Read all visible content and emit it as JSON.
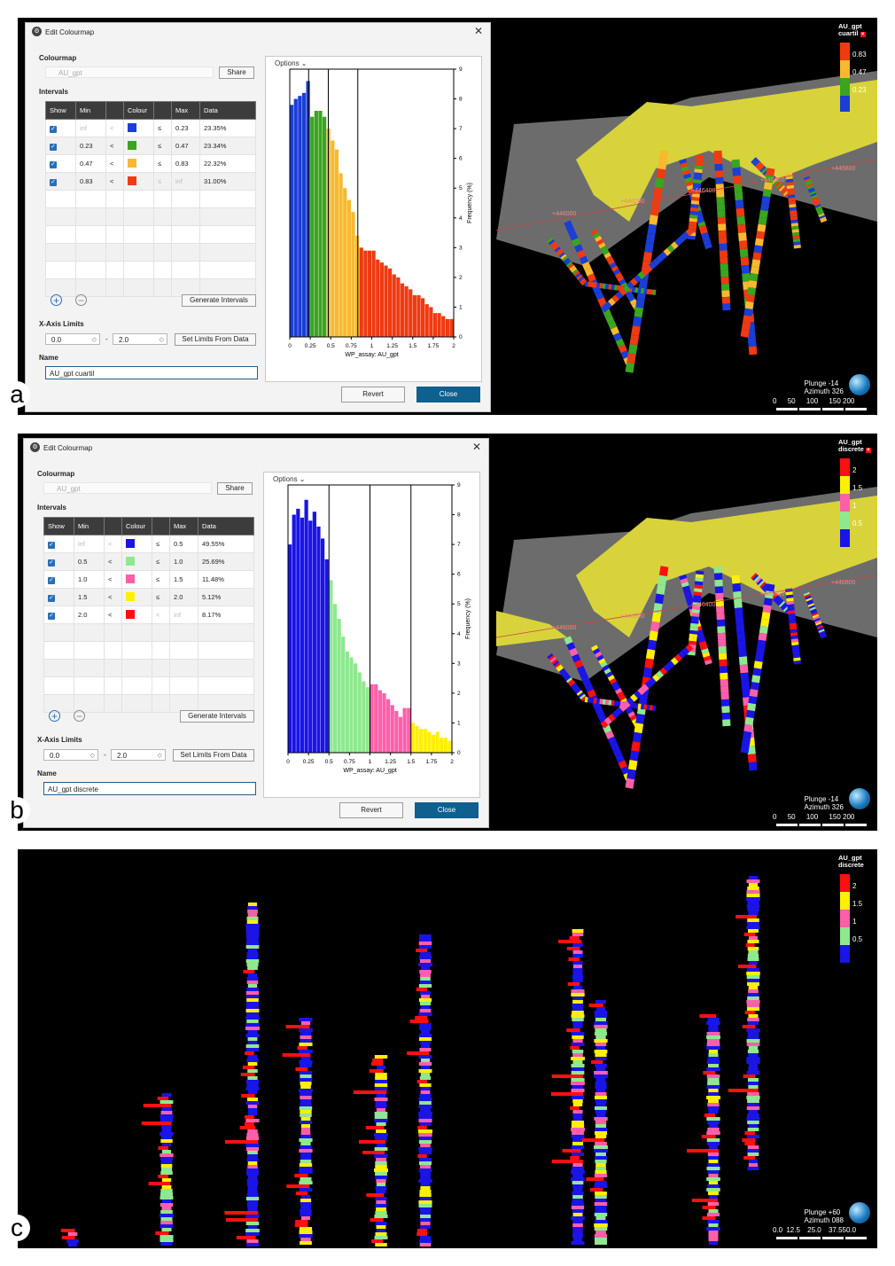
{
  "panels": [
    {
      "letter": "a",
      "dialog": {
        "title": "Edit Colourmap",
        "colourmap_label": "Colourmap",
        "colourmap_value": "AU_gpt",
        "share_label": "Share",
        "intervals_label": "Intervals",
        "headers": [
          "Show",
          "Min",
          "",
          "Colour",
          "",
          "Max",
          "Data"
        ],
        "rows": [
          {
            "min": "inf",
            "op1": "<",
            "color": "#1a3ed6",
            "op2": "≤",
            "max": "0.23",
            "data": "23.35%"
          },
          {
            "min": "0.23",
            "op1": "<",
            "color": "#3aa520",
            "op2": "≤",
            "max": "0.47",
            "data": "23.34%"
          },
          {
            "min": "0.47",
            "op1": "<",
            "color": "#f8b92e",
            "op2": "≤",
            "max": "0.83",
            "data": "22.32%"
          },
          {
            "min": "0.83",
            "op1": "<",
            "color": "#ef3a12",
            "op2": "≤",
            "max": "inf",
            "data": "31.00%"
          }
        ],
        "generate_label": "Generate Intervals",
        "xaxis_label": "X-Axis Limits",
        "xmin": "0.0",
        "dash": "-",
        "xmax": "2.0",
        "set_limits_label": "Set Limits From Data",
        "name_label": "Name",
        "name_value": "AU_gpt cuartil",
        "revert_label": "Revert",
        "close_label": "Close",
        "options_label": "Options"
      },
      "legend": {
        "title": "AU_gpt cuartil",
        "ticks": [
          "0.83",
          "0.47",
          "0.23"
        ],
        "colors": [
          "#ef3a12",
          "#f8b92e",
          "#3aa520",
          "#1a3ed6"
        ]
      },
      "orientation": {
        "plunge": "Plunge -14",
        "azimuth": "Azimuth 326"
      },
      "scale_ticks": [
        "0",
        "50",
        "100",
        "150",
        "200"
      ],
      "coords": [
        "+446000",
        "+446200",
        "+446400",
        "+446600",
        "+446800"
      ]
    },
    {
      "letter": "b",
      "dialog": {
        "title": "Edit Colourmap",
        "colourmap_label": "Colourmap",
        "colourmap_value": "AU_gpt",
        "share_label": "Share",
        "intervals_label": "Intervals",
        "headers": [
          "Show",
          "Min",
          "",
          "Colour",
          "",
          "Max",
          "Data"
        ],
        "rows": [
          {
            "min": "inf",
            "op1": "<",
            "color": "#1a14e6",
            "op2": "≤",
            "max": "0.5",
            "data": "49.55%"
          },
          {
            "min": "0.5",
            "op1": "<",
            "color": "#8fe88f",
            "op2": "≤",
            "max": "1.0",
            "data": "25.69%"
          },
          {
            "min": "1.0",
            "op1": "<",
            "color": "#ff5faa",
            "op2": "≤",
            "max": "1.5",
            "data": "11.48%"
          },
          {
            "min": "1.5",
            "op1": "<",
            "color": "#ffef00",
            "op2": "≤",
            "max": "2.0",
            "data": "5.12%"
          },
          {
            "min": "2.0",
            "op1": "<",
            "color": "#ff1010",
            "op2": "<",
            "max": "inf",
            "data": "8.17%"
          }
        ],
        "generate_label": "Generate Intervals",
        "xaxis_label": "X-Axis Limits",
        "xmin": "0.0",
        "dash": "-",
        "xmax": "2.0",
        "set_limits_label": "Set Limits From Data",
        "name_label": "Name",
        "name_value": "AU_gpt discrete",
        "revert_label": "Revert",
        "close_label": "Close",
        "options_label": "Options"
      },
      "legend": {
        "title": "AU_gpt discrete",
        "ticks": [
          "2",
          "1.5",
          "1",
          "0.5"
        ],
        "colors": [
          "#ff1010",
          "#ffef00",
          "#ff5faa",
          "#8fe88f",
          "#1a14e6"
        ]
      },
      "orientation": {
        "plunge": "Plunge -14",
        "azimuth": "Azimuth 326"
      },
      "scale_ticks": [
        "0",
        "50",
        "100",
        "150",
        "200"
      ],
      "coords": [
        "+446000",
        "+446200",
        "+446400",
        "+446600",
        "+446800"
      ]
    },
    {
      "letter": "c",
      "legend": {
        "title": "AU_gpt discrete",
        "ticks": [
          "2",
          "1.5",
          "1",
          "0.5"
        ],
        "colors": [
          "#ff1010",
          "#ffef00",
          "#ff5faa",
          "#8fe88f",
          "#1a14e6"
        ]
      },
      "orientation": {
        "plunge": "Plunge +60",
        "azimuth": "Azimuth 088"
      },
      "scale_ticks": [
        "0.0",
        "12.5",
        "25.0",
        "37.550.0"
      ]
    }
  ],
  "chart_data": [
    {
      "type": "bar",
      "xlabel": "WP_assay: AU_gpt",
      "ylabel": "Frequency (%)",
      "xlim": [
        0,
        2
      ],
      "ylim": [
        0,
        9
      ],
      "xticks": [
        "0",
        "0.25",
        "0.5",
        "0.75",
        "1",
        "1.25",
        "1.5",
        "1.75",
        "2"
      ],
      "yticks": [
        "0",
        "1",
        "2",
        "3",
        "4",
        "5",
        "6",
        "7",
        "8",
        "9"
      ],
      "bin_width": 0.05,
      "values": [
        7.8,
        8.0,
        8.1,
        8.2,
        8.6,
        7.4,
        7.6,
        7.6,
        7.4,
        7.0,
        6.6,
        6.3,
        5.5,
        5.0,
        4.6,
        4.2,
        3.4,
        3.0,
        2.9,
        2.9,
        2.9,
        2.6,
        2.5,
        2.4,
        2.3,
        2.1,
        2.0,
        1.8,
        1.7,
        1.6,
        1.4,
        1.4,
        1.3,
        1.1,
        1.0,
        0.8,
        0.8,
        0.7,
        0.6,
        0.6
      ],
      "thresholds": [
        0.23,
        0.47,
        0.83
      ],
      "colors": [
        "#1a3ed6",
        "#3aa520",
        "#f8b92e",
        "#ef3a12"
      ]
    },
    {
      "type": "bar",
      "xlabel": "WP_assay: AU_gpt",
      "ylabel": "Frequency (%)",
      "xlim": [
        0,
        2
      ],
      "ylim": [
        0,
        9
      ],
      "xticks": [
        "0",
        "0.25",
        "0.5",
        "0.75",
        "1",
        "1.25",
        "1.5",
        "1.75",
        "2"
      ],
      "yticks": [
        "0",
        "1",
        "2",
        "3",
        "4",
        "5",
        "6",
        "7",
        "8",
        "9"
      ],
      "bin_width": 0.05,
      "values": [
        7.0,
        8.0,
        8.2,
        7.9,
        8.5,
        7.8,
        8.1,
        7.6,
        7.2,
        6.5,
        5.8,
        5.0,
        4.5,
        3.9,
        3.4,
        3.2,
        3.0,
        2.7,
        2.4,
        2.2,
        2.3,
        2.3,
        2.1,
        2.0,
        1.8,
        1.6,
        1.4,
        1.2,
        1.5,
        1.5,
        1.0,
        0.9,
        0.8,
        0.8,
        0.7,
        0.6,
        0.7,
        0.5,
        0.5,
        0.4
      ],
      "thresholds": [
        0.5,
        1.0,
        1.5
      ],
      "colors": [
        "#1a14e6",
        "#8fe88f",
        "#ff5faa",
        "#ffef00"
      ]
    }
  ]
}
